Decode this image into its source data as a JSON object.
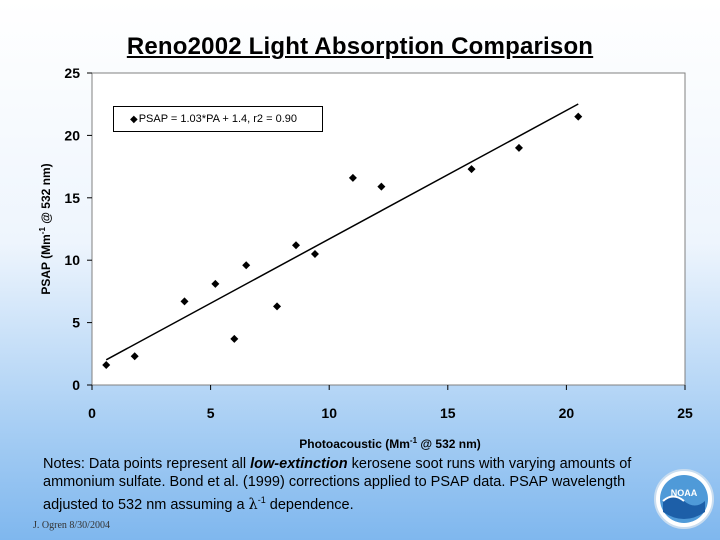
{
  "slide": {
    "title": "Reno2002 Light Absorption Comparison",
    "notes": {
      "part1": "Notes:  Data points represent all ",
      "emphasis": "low-extinction",
      "part2": " kerosene soot runs with varying amounts of ammonium sulfate.  Bond et al. (1999) corrections applied to PSAP data.  PSAP wavelength adjusted to 532 nm assuming a ",
      "lambda": "λ",
      "exponent": "-1",
      "part3": " dependence."
    },
    "footer": "J. Ogren  8/30/2004",
    "logo_text": "NOAA"
  },
  "colors": {
    "background_top": "#ffffff",
    "background_bottom": "#7fb7ee",
    "points": "#000000",
    "line": "#000000"
  },
  "chart_data": {
    "type": "scatter",
    "title": "Reno2002 Light Absorption Comparison",
    "xlabel": "Photoacoustic (Mm-1 @ 532 nm)",
    "xlabel_parts": {
      "pre": "Photoacoustic (Mm",
      "sup": "-1",
      "post": " @ 532 nm)"
    },
    "ylabel": "PSAP (Mm-1 @ 532 nm)",
    "ylabel_parts": {
      "pre": "PSAP (Mm",
      "sup": "-1",
      "post": " @ 532 nm)"
    },
    "xlim": [
      0,
      25
    ],
    "ylim": [
      0,
      25
    ],
    "xticks": [
      0,
      5,
      10,
      15,
      20,
      25
    ],
    "yticks": [
      0,
      5,
      10,
      15,
      20,
      25
    ],
    "grid": false,
    "legend": {
      "placement": "top-left",
      "entry": "PSAP = 1.03*PA + 1.4, r2 = 0.90"
    },
    "points": [
      {
        "x": 0.6,
        "y": 1.6
      },
      {
        "x": 1.8,
        "y": 2.3
      },
      {
        "x": 3.9,
        "y": 6.7
      },
      {
        "x": 5.2,
        "y": 8.1
      },
      {
        "x": 6.0,
        "y": 3.7
      },
      {
        "x": 6.5,
        "y": 9.6
      },
      {
        "x": 7.8,
        "y": 6.3
      },
      {
        "x": 8.6,
        "y": 11.2
      },
      {
        "x": 9.4,
        "y": 10.5
      },
      {
        "x": 11.0,
        "y": 16.6
      },
      {
        "x": 12.2,
        "y": 15.9
      },
      {
        "x": 16.0,
        "y": 17.3
      },
      {
        "x": 18.0,
        "y": 19.0
      },
      {
        "x": 20.5,
        "y": 21.5
      }
    ],
    "fit": {
      "slope": 1.03,
      "intercept": 1.4,
      "r2": 0.9,
      "x_range": [
        0.6,
        20.5
      ]
    }
  }
}
